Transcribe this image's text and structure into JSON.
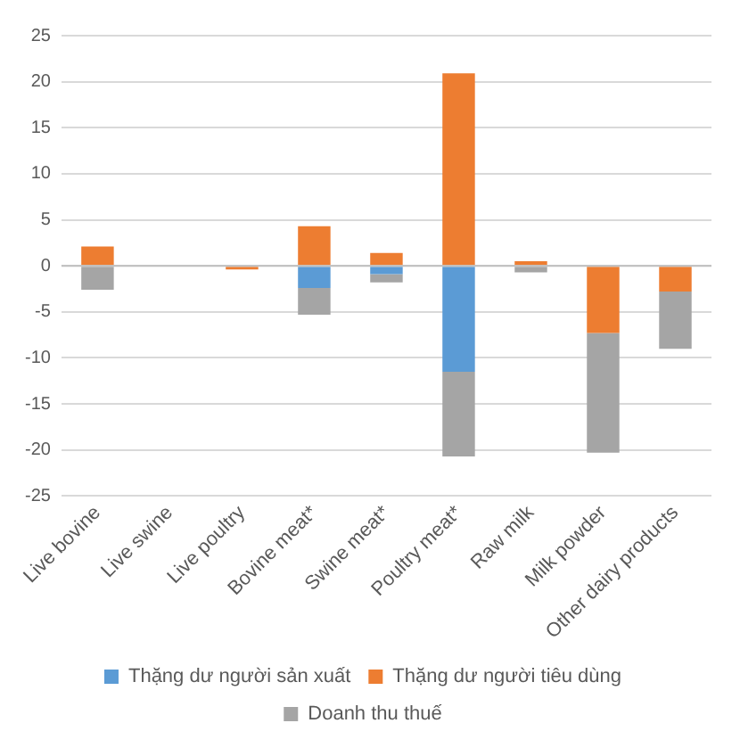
{
  "chart_data": {
    "type": "bar",
    "stacked": true,
    "categories": [
      "Live bovine",
      "Live swine",
      "Live poultry",
      "Bovine meat*",
      "Swine meat*",
      "Poultry meat*",
      "Raw milk",
      "Milk powder",
      "Other dairy products"
    ],
    "series": [
      {
        "name": "Thặng dư người sản xuất",
        "color": "#5b9bd5",
        "values": [
          0,
          0,
          0,
          -2.4,
          -0.9,
          -11.5,
          0,
          0,
          0
        ]
      },
      {
        "name": "Thặng dư người tiêu dùng",
        "color": "#ed7d31",
        "values": [
          2.1,
          0,
          -0.4,
          4.3,
          1.4,
          20.9,
          0.5,
          -7.3,
          -2.8
        ]
      },
      {
        "name": "Doanh thu thuế",
        "color": "#a5a5a5",
        "values": [
          -2.6,
          0,
          0,
          -2.9,
          -0.9,
          -9.2,
          -0.7,
          -13.0,
          -6.2
        ]
      }
    ],
    "ylim": [
      -25,
      25
    ],
    "yticks": [
      -25,
      -20,
      -15,
      -10,
      -5,
      0,
      5,
      10,
      15,
      20,
      25
    ],
    "grid": "y",
    "legend": "bottom"
  }
}
